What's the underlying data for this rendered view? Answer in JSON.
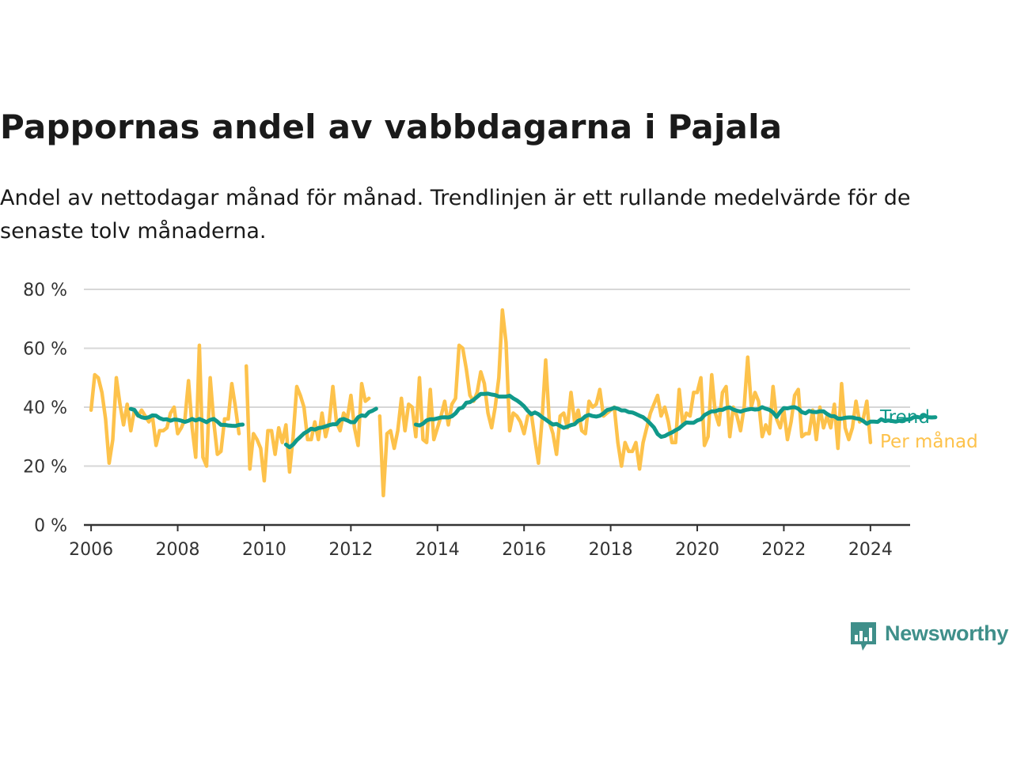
{
  "title": "Pappornas andel av vabbdagarna i Pajala",
  "subtitle": "Andel av nettodagar månad för månad. Trendlinjen är ett rullande medelvärde för de senaste tolv månaderna.",
  "brand": "Newsworthy",
  "colors": {
    "monthly": "#fdc24b",
    "trend": "#10998a",
    "grid": "#d7d7d7",
    "axis": "#333333",
    "brand": "#3f8f8a"
  },
  "chart_data": {
    "type": "line",
    "y_unit": "%",
    "ylim": [
      0,
      80
    ],
    "y_ticks": [
      0,
      20,
      40,
      60,
      80
    ],
    "y_tick_labels": [
      "0 %",
      "20 %",
      "40 %",
      "60 %",
      "80 %"
    ],
    "x_range": [
      "2005-11",
      "2024-12"
    ],
    "x_ticks": [
      "2006",
      "2008",
      "2010",
      "2012",
      "2014",
      "2016",
      "2018",
      "2020",
      "2022",
      "2024"
    ],
    "grid": "horizontal",
    "legend": "inline-right",
    "series": [
      {
        "name": "Per månad",
        "segments": [
          {
            "start": "2006-01",
            "values": [
              39,
              51,
              50,
              45,
              36,
              21,
              29,
              50,
              41,
              34,
              41,
              32,
              39,
              37,
              39,
              37,
              35,
              37,
              27,
              32,
              32,
              33,
              38,
              40,
              31,
              33,
              36,
              49,
              33,
              23,
              61,
              23,
              20,
              50,
              35,
              24,
              25,
              36,
              36,
              48,
              40,
              31
            ]
          },
          {
            "start": "2009-08",
            "values": [
              54,
              19,
              31,
              29,
              26,
              15,
              32,
              32,
              24,
              33,
              28,
              34,
              18,
              30,
              47,
              44,
              40,
              29,
              29,
              35,
              29,
              38,
              30,
              35,
              47,
              35,
              32,
              38,
              36,
              44,
              33,
              27,
              48,
              42,
              43
            ]
          },
          {
            "start": "2012-09",
            "values": [
              37,
              10,
              31,
              32,
              26,
              32,
              43,
              32,
              41,
              40,
              30,
              50,
              29,
              28,
              46,
              29,
              33,
              37,
              42,
              34,
              41,
              43,
              61,
              60,
              53,
              44,
              42,
              45,
              52,
              48,
              38,
              33,
              40,
              50,
              73,
              62,
              32,
              38,
              37,
              35,
              31,
              37,
              38,
              29,
              21,
              36,
              56,
              35,
              31,
              24,
              37,
              38,
              33,
              45,
              35,
              39,
              32,
              31,
              42,
              40,
              41,
              46,
              37,
              38,
              39,
              40,
              28,
              20,
              28,
              25,
              25,
              28,
              19,
              28,
              33,
              38,
              41,
              44,
              37,
              40,
              35,
              28,
              28,
              46,
              34,
              38,
              37,
              45,
              45,
              50,
              27,
              30,
              51,
              38,
              34,
              45,
              47,
              30,
              40,
              37,
              32,
              40,
              57,
              40,
              45,
              42,
              30,
              34,
              31,
              47,
              36,
              33,
              39,
              29,
              35,
              44,
              46,
              30,
              31,
              31,
              39,
              29,
              40,
              33,
              37,
              33,
              41,
              26,
              48,
              33,
              29,
              33,
              42,
              35,
              36,
              42,
              28
            ]
          }
        ]
      },
      {
        "name": "Trend",
        "segments": [
          {
            "start": "2006-12",
            "values": [
              39.4,
              39.1,
              37.2,
              36.6,
              36.3,
              36.6,
              37.2,
              37.1,
              36.3,
              35.8,
              35.9,
              35.4,
              35.8,
              35.7,
              35.4,
              35.0,
              35.4,
              36.0,
              35.5,
              36.0,
              35.5,
              34.9,
              35.7,
              36.0,
              35.1,
              34.0,
              34.0,
              33.8,
              33.7,
              33.6,
              34.0,
              34.1
            ]
          },
          {
            "start": "2010-07",
            "values": [
              27.3,
              26.4,
              27.3,
              28.8,
              29.9,
              31.1,
              31.8,
              32.7,
              32.4,
              32.9,
              33.1,
              33.5,
              33.9,
              34.2,
              34.2,
              35.7,
              36.0,
              35.5,
              34.9,
              34.9,
              36.6,
              37.2,
              37.0,
              38.3,
              38.8,
              39.5
            ]
          },
          {
            "start": "2013-07",
            "values": [
              34.1,
              33.8,
              34.4,
              35.5,
              35.9,
              35.9,
              36.2,
              36.5,
              36.6,
              36.5,
              36.9,
              37.9,
              39.5,
              39.9,
              41.5,
              41.7,
              42.5,
              43.5,
              44.5,
              44.5,
              44.6,
              44.3,
              44.1,
              43.6,
              43.6,
              43.6,
              43.9,
              43.0,
              42.3,
              41.4,
              40.3,
              38.8,
              37.6,
              38.2,
              37.6,
              36.6,
              35.8,
              34.9,
              34.1,
              34.3,
              33.6,
              33.0,
              33.4,
              33.9,
              34.2,
              35.4,
              35.8,
              36.9,
              37.4,
              37.0,
              36.8,
              37.1,
              37.9,
              39.0,
              39.3,
              39.8,
              39.5,
              38.9,
              38.9,
              38.3,
              38.2,
              37.7,
              37.1,
              36.6,
              35.6,
              34.4,
              33.1,
              30.9,
              29.9,
              30.2,
              30.9,
              31.4,
              32.2,
              32.8,
              33.9,
              34.8,
              34.7,
              34.7,
              35.5,
              35.9,
              37.3,
              38.0,
              38.6,
              38.6,
              39.1,
              39.1,
              39.7,
              39.9,
              39.2,
              38.8,
              38.5,
              38.9,
              39.2,
              39.4,
              39.2,
              39.3,
              40.0,
              39.5,
              39.1,
              38.2,
              36.7,
              38.4,
              39.7,
              39.6,
              39.9,
              40.0,
              39.5,
              38.3,
              37.9,
              38.7,
              38.4,
              38.3,
              38.6,
              38.6,
              37.7,
              37.0,
              36.9,
              36.1,
              36.1,
              36.4,
              36.5,
              36.5,
              36.2,
              36.0,
              35.3,
              34.4,
              35.1,
              35.1,
              35.0,
              35.9,
              35.3,
              35.5,
              35.3,
              35.1,
              35.4,
              35.5,
              35.8,
              35.9,
              36.6,
              36.7,
              36.4,
              37.2,
              36.6,
              36.5,
              36.6
            ]
          }
        ]
      }
    ]
  }
}
